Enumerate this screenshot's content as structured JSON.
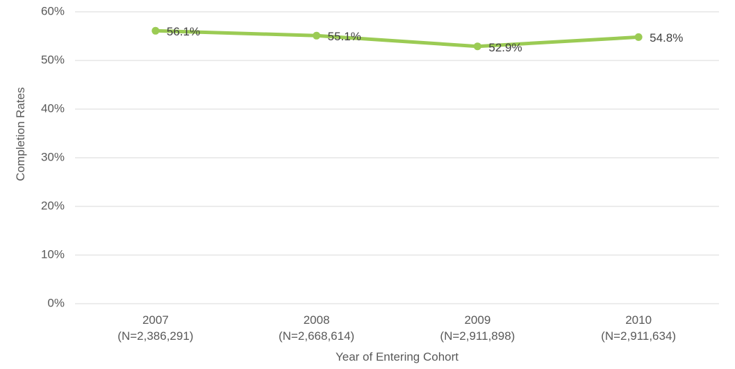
{
  "chart_data": {
    "type": "line",
    "title": "",
    "xlabel": "Year of Entering Cohort",
    "ylabel": "Completion Rates",
    "categories": [
      "2007",
      "2008",
      "2009",
      "2010"
    ],
    "cohort_sizes": [
      "(N=2,386,291)",
      "(N=2,668,614)",
      "(N=2,911,898)",
      "(N=2,911,634)"
    ],
    "series": [
      {
        "name": "completion-rate",
        "values": [
          56.1,
          55.1,
          52.9,
          54.8
        ],
        "data_labels": [
          "56.1%",
          "55.1%",
          "52.9%",
          "54.8%"
        ]
      }
    ],
    "ytick_values": [
      0,
      10,
      20,
      30,
      40,
      50,
      60
    ],
    "ytick_labels": [
      "0%",
      "10%",
      "20%",
      "30%",
      "40%",
      "50%",
      "60%"
    ],
    "ylim": [
      0,
      60
    ],
    "grid": true,
    "legend": "none",
    "colors": {
      "line": "#9BCB54",
      "marker": "#9BCB54",
      "gridline": "#D9D9D9",
      "axis_text": "#595959",
      "data_label": "#404040",
      "background": "#FFFFFF"
    }
  }
}
